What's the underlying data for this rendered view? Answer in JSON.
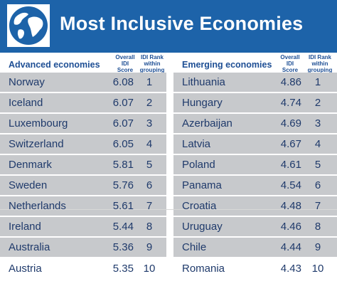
{
  "title": "Most Inclusive Economies",
  "advanced": {
    "heading": "Advanced economies",
    "score_header": "Overall\nIDI\nScore",
    "rank_header": "IDI Rank\nwithin\ngrouping",
    "rows": [
      {
        "country": "Norway",
        "score": "6.08",
        "rank": "1"
      },
      {
        "country": "Iceland",
        "score": "6.07",
        "rank": "2"
      },
      {
        "country": "Luxembourg",
        "score": "6.07",
        "rank": "3"
      },
      {
        "country": "Switzerland",
        "score": "6.05",
        "rank": "4"
      },
      {
        "country": "Denmark",
        "score": "5.81",
        "rank": "5"
      },
      {
        "country": "Sweden",
        "score": "5.76",
        "rank": "6"
      },
      {
        "country": "Netherlands",
        "score": "5.61",
        "rank": "7"
      },
      {
        "country": "Ireland",
        "score": "5.44",
        "rank": "8"
      },
      {
        "country": "Australia",
        "score": "5.36",
        "rank": "9"
      },
      {
        "country": "Austria",
        "score": "5.35",
        "rank": "10"
      }
    ]
  },
  "emerging": {
    "heading": "Emerging economies",
    "score_header": "Overall\nIDI\nScore",
    "rank_header": "IDI Rank\nwithin\ngrouping",
    "rows": [
      {
        "country": "Lithuania",
        "score": "4.86",
        "rank": "1"
      },
      {
        "country": "Hungary",
        "score": "4.74",
        "rank": "2"
      },
      {
        "country": "Azerbaijan",
        "score": "4.69",
        "rank": "3"
      },
      {
        "country": "Latvia",
        "score": "4.67",
        "rank": "4"
      },
      {
        "country": "Poland",
        "score": "4.61",
        "rank": "5"
      },
      {
        "country": "Panama",
        "score": "4.54",
        "rank": "6"
      },
      {
        "country": "Croatia",
        "score": "4.48",
        "rank": "7"
      },
      {
        "country": "Uruguay",
        "score": "4.46",
        "rank": "8"
      },
      {
        "country": "Chile",
        "score": "4.44",
        "rank": "9"
      },
      {
        "country": "Romania",
        "score": "4.43",
        "rank": "10"
      }
    ]
  },
  "colors": {
    "header_bg": "#1d63a9",
    "row_shade": "#c7c9cc",
    "text": "#1f3a6b",
    "heading_text": "#1d4e94"
  },
  "icons": {
    "logo": "globe-icon"
  }
}
